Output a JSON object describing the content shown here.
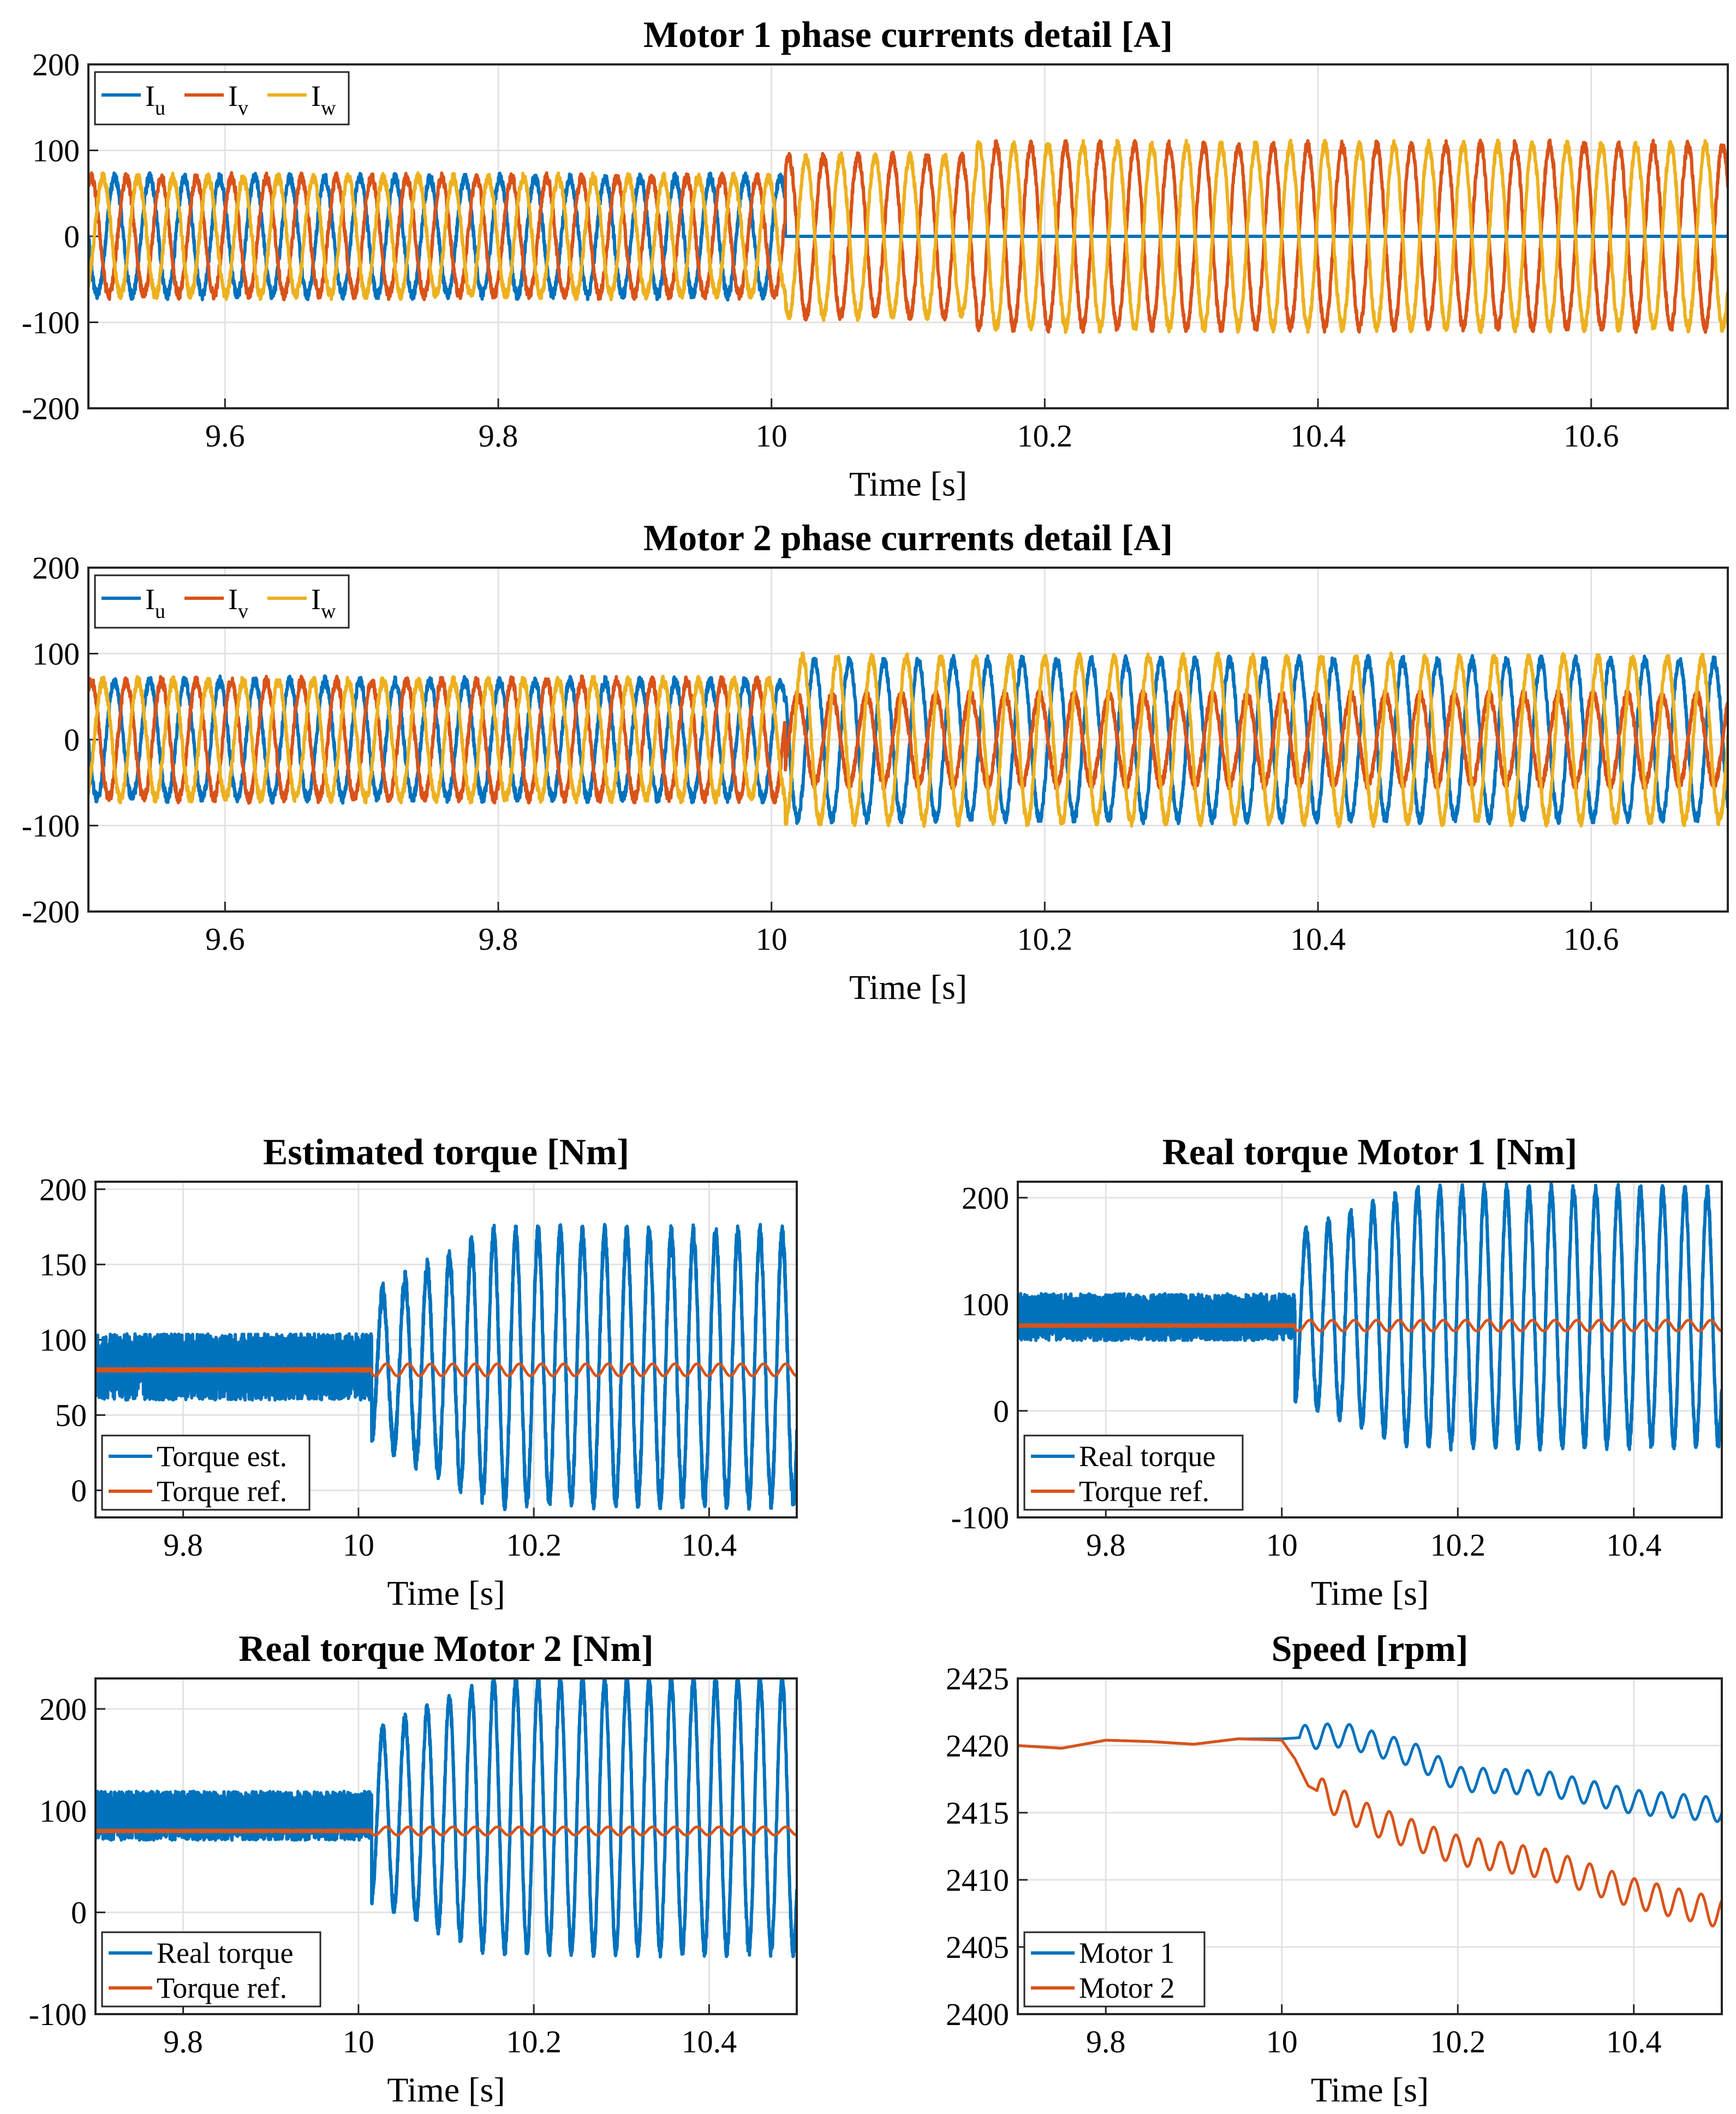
{
  "colors": {
    "blue": "#0072BD",
    "orange": "#D95319",
    "yellow": "#EDB120"
  },
  "chart_data": [
    {
      "id": "m1",
      "type": "line",
      "title": "Motor 1 phase currents detail [A]",
      "xlabel": "Time [s]",
      "ylabel": "",
      "xlim": [
        9.5,
        10.7
      ],
      "ylim": [
        -200,
        200
      ],
      "xticks": [
        9.6,
        9.8,
        10,
        10.2,
        10.4,
        10.6
      ],
      "xtick_labels": [
        "9.6",
        "9.8",
        "10",
        "10.2",
        "10.4",
        "10.6"
      ],
      "yticks": [
        -200,
        -100,
        0,
        100,
        200
      ],
      "ytick_labels": [
        "-200",
        "-100",
        "0",
        "100",
        "200"
      ],
      "grid": true,
      "legend_location": "top-left",
      "legend_orientation": "horizontal",
      "series": [
        {
          "name": "I",
          "sub": "u",
          "color": "#0072BD",
          "segments": [
            {
              "t0": 9.5,
              "t1": 10.01,
              "amp": 68,
              "freq": 39.0,
              "phase": 0.0
            },
            {
              "t0": 10.01,
              "t1": 10.7,
              "amp": 0,
              "freq": 39.5,
              "phase": 0.0
            }
          ]
        },
        {
          "name": "I",
          "sub": "v",
          "color": "#D95319",
          "segments": [
            {
              "t0": 9.5,
              "t1": 10.01,
              "amp": 68,
              "freq": 39.0,
              "phase": -2.094
            },
            {
              "t0": 10.01,
              "t1": 10.15,
              "amp": 92,
              "freq": 39.5,
              "phase": -1.571
            },
            {
              "t0": 10.15,
              "t1": 10.7,
              "amp": 106,
              "freq": 39.5,
              "phase": -1.571
            }
          ]
        },
        {
          "name": "I",
          "sub": "w",
          "color": "#EDB120",
          "segments": [
            {
              "t0": 9.5,
              "t1": 10.01,
              "amp": 68,
              "freq": 39.0,
              "phase": 2.094
            },
            {
              "t0": 10.01,
              "t1": 10.15,
              "amp": 92,
              "freq": 39.5,
              "phase": 1.571
            },
            {
              "t0": 10.15,
              "t1": 10.7,
              "amp": 106,
              "freq": 39.5,
              "phase": 1.571
            }
          ]
        }
      ]
    },
    {
      "id": "m2",
      "type": "line",
      "title": "Motor 2 phase currents detail [A]",
      "xlabel": "Time [s]",
      "ylabel": "",
      "xlim": [
        9.5,
        10.7
      ],
      "ylim": [
        -200,
        200
      ],
      "xticks": [
        9.6,
        9.8,
        10,
        10.2,
        10.4,
        10.6
      ],
      "xtick_labels": [
        "9.6",
        "9.8",
        "10",
        "10.2",
        "10.4",
        "10.6"
      ],
      "yticks": [
        -200,
        -100,
        0,
        100,
        200
      ],
      "ytick_labels": [
        "-200",
        "-100",
        "0",
        "100",
        "200"
      ],
      "grid": true,
      "legend_location": "top-left",
      "legend_orientation": "horizontal",
      "series": [
        {
          "name": "I",
          "sub": "u",
          "color": "#0072BD",
          "segments": [
            {
              "t0": 9.5,
              "t1": 10.01,
              "amp": 68,
              "freq": 39.0,
              "phase": 0.0
            },
            {
              "t0": 10.01,
              "t1": 10.7,
              "amp": 92,
              "freq": 39.5,
              "phase": 0.0
            }
          ]
        },
        {
          "name": "I",
          "sub": "v",
          "color": "#D95319",
          "segments": [
            {
              "t0": 9.5,
              "t1": 10.01,
              "amp": 68,
              "freq": 39.0,
              "phase": -2.094
            },
            {
              "t0": 10.01,
              "t1": 10.7,
              "amp": 52,
              "freq": 39.5,
              "phase": 3.142
            }
          ]
        },
        {
          "name": "I",
          "sub": "w",
          "color": "#EDB120",
          "segments": [
            {
              "t0": 9.5,
              "t1": 10.01,
              "amp": 68,
              "freq": 39.0,
              "phase": 2.094
            },
            {
              "t0": 10.01,
              "t1": 10.7,
              "amp": 95,
              "freq": 39.5,
              "phase": 2.2
            }
          ]
        }
      ]
    },
    {
      "id": "te",
      "type": "line",
      "title": "Estimated torque [Nm]",
      "xlabel": "Time [s]",
      "ylabel": "",
      "xlim": [
        9.7,
        10.5
      ],
      "ylim": [
        -18,
        205
      ],
      "xticks": [
        9.8,
        10,
        10.2,
        10.4
      ],
      "xtick_labels": [
        "9.8",
        "10",
        "10.2",
        "10.4"
      ],
      "yticks": [
        0,
        50,
        100,
        150,
        200
      ],
      "ytick_labels": [
        "0",
        "50",
        "100",
        "150",
        "200"
      ],
      "grid": true,
      "legend_location": "bottom-left",
      "legend_orientation": "vertical",
      "series": [
        {
          "name": "Torque est.",
          "color": "#0072BD",
          "kind": "torque",
          "mean": 82,
          "noise_amp": 22,
          "t_step": 10.015,
          "osc_amp": 88,
          "osc_amp_start": 45,
          "osc_ramp_end": 10.15,
          "osc_freq": 39.5
        },
        {
          "name": "Torque ref.",
          "color": "#D95319",
          "kind": "ref",
          "mean": 80,
          "t_step": 10.015,
          "ripple": 4,
          "ripple_freq": 39.5
        }
      ]
    },
    {
      "id": "t1",
      "type": "line",
      "title": "Real torque Motor 1 [Nm]",
      "xlabel": "Time [s]",
      "ylabel": "",
      "xlim": [
        9.7,
        10.5
      ],
      "ylim": [
        -100,
        215
      ],
      "xticks": [
        9.8,
        10,
        10.2,
        10.4
      ],
      "xtick_labels": [
        "9.8",
        "10",
        "10.2",
        "10.4"
      ],
      "yticks": [
        -100,
        0,
        100,
        200
      ],
      "ytick_labels": [
        "-100",
        "0",
        "100",
        "200"
      ],
      "grid": true,
      "legend_location": "bottom-left",
      "legend_orientation": "vertical",
      "series": [
        {
          "name": "Real torque",
          "color": "#0072BD",
          "kind": "torque",
          "mean": 88,
          "noise_amp": 22,
          "t_step": 10.015,
          "osc_amp": 118,
          "osc_amp_start": 75,
          "osc_ramp_end": 10.15,
          "osc_freq": 39.5
        },
        {
          "name": "Torque ref.",
          "color": "#D95319",
          "kind": "ref",
          "mean": 80,
          "t_step": 10.015,
          "ripple": 5,
          "ripple_freq": 39.5
        }
      ]
    },
    {
      "id": "t2",
      "type": "line",
      "title": "Real torque Motor 2 [Nm]",
      "xlabel": "Time [s]",
      "ylabel": "",
      "xlim": [
        9.7,
        10.5
      ],
      "ylim": [
        -100,
        230
      ],
      "xticks": [
        9.8,
        10,
        10.2,
        10.4
      ],
      "xtick_labels": [
        "9.8",
        "10",
        "10.2",
        "10.4"
      ],
      "yticks": [
        -100,
        0,
        100,
        200
      ],
      "ytick_labels": [
        "-100",
        "0",
        "100",
        "200"
      ],
      "grid": true,
      "legend_location": "bottom-left",
      "legend_orientation": "vertical",
      "series": [
        {
          "name": "Real torque",
          "color": "#0072BD",
          "kind": "torque",
          "mean": 95,
          "noise_amp": 24,
          "t_step": 10.015,
          "osc_amp": 132,
          "osc_amp_start": 80,
          "osc_ramp_end": 10.15,
          "osc_freq": 39.5
        },
        {
          "name": "Torque ref.",
          "color": "#D95319",
          "kind": "ref",
          "mean": 80,
          "t_step": 10.015,
          "ripple": 4,
          "ripple_freq": 39.5
        }
      ]
    },
    {
      "id": "sp",
      "type": "line",
      "title": "Speed [rpm]",
      "xlabel": "Time [s]",
      "ylabel": "",
      "xlim": [
        9.7,
        10.5
      ],
      "ylim": [
        2400,
        2425
      ],
      "xticks": [
        9.8,
        10,
        10.2,
        10.4
      ],
      "xtick_labels": [
        "9.8",
        "10",
        "10.2",
        "10.4"
      ],
      "yticks": [
        2400,
        2405,
        2410,
        2415,
        2420,
        2425
      ],
      "ytick_labels": [
        "2400",
        "2405",
        "2410",
        "2415",
        "2420",
        "2425"
      ],
      "grid": true,
      "legend_location": "bottom-left",
      "legend_orientation": "vertical",
      "series": [
        {
          "name": "Motor 1",
          "color": "#0072BD",
          "kind": "speed",
          "points": [
            [
              9.7,
              2420.0
            ],
            [
              9.75,
              2419.8
            ],
            [
              9.8,
              2420.4
            ],
            [
              9.85,
              2420.3
            ],
            [
              9.9,
              2420.1
            ],
            [
              9.95,
              2420.5
            ],
            [
              10.0,
              2420.5
            ],
            [
              10.07,
              2420.8
            ],
            [
              10.15,
              2419.3
            ],
            [
              10.2,
              2417.5
            ],
            [
              10.3,
              2417.2
            ],
            [
              10.4,
              2415.8
            ],
            [
              10.5,
              2415.2
            ]
          ],
          "ripple": 0.9,
          "ripple_start": 10.02,
          "ripple_freq": 39.5
        },
        {
          "name": "Motor 2",
          "color": "#D95319",
          "kind": "speed",
          "points": [
            [
              9.7,
              2420.0
            ],
            [
              9.75,
              2419.8
            ],
            [
              9.8,
              2420.4
            ],
            [
              9.85,
              2420.3
            ],
            [
              9.9,
              2420.1
            ],
            [
              9.95,
              2420.5
            ],
            [
              10.0,
              2420.4
            ],
            [
              10.015,
              2419.0
            ],
            [
              10.03,
              2417.0
            ],
            [
              10.1,
              2414.5
            ],
            [
              10.2,
              2412.2
            ],
            [
              10.3,
              2411.2
            ],
            [
              10.4,
              2409.0
            ],
            [
              10.5,
              2407.5
            ]
          ],
          "ripple": 1.1,
          "ripple_start": 10.04,
          "ripple_freq": 39.5
        }
      ]
    }
  ]
}
